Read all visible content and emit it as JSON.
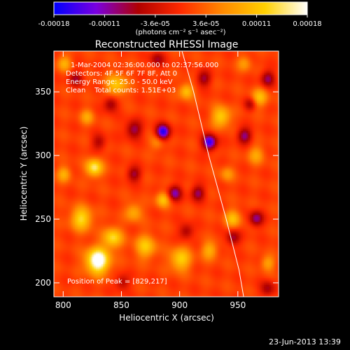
{
  "chart_data": {
    "type": "heatmap",
    "title": "Reconstructed RHESSI Image",
    "xlabel": "Heliocentric X (arcsec)",
    "ylabel": "Heliocentric Y (arcsec)",
    "xlim": [
      792,
      985
    ],
    "ylim": [
      189,
      382
    ],
    "xticks": [
      800,
      850,
      900,
      950
    ],
    "yticks": [
      200,
      250,
      300,
      350
    ],
    "colorbar": {
      "label": "(photons cm⁻² s⁻¹ asec⁻²)",
      "range": [
        -0.00018,
        0.00018
      ],
      "ticks": [
        "-0.00018",
        "-0.00011",
        "-3.6e-05",
        "3.6e-05",
        "0.00011",
        "0.00018"
      ],
      "colormap": [
        "#0000ff",
        "#7a00e0",
        "#b00000",
        "#ff2a00",
        "#ff8a00",
        "#ffd000",
        "#ffffff"
      ]
    },
    "annotations": [
      "1-Mar-2004 02:36:00.000 to 02:37:56.000",
      "Detectors: 4F 5F 6F 7F 8F, Att 0",
      "Energy Range: 25.0 - 50.0 keV",
      "Clean    Total counts: 1.51E+03"
    ],
    "peak_label": "Position of Peak = [829,217]",
    "peak": [
      829,
      217
    ],
    "limb_curve": [
      [
        902,
        382
      ],
      [
        912,
        350
      ],
      [
        925,
        300
      ],
      [
        940,
        250
      ],
      [
        951,
        210
      ],
      [
        955,
        189
      ]
    ]
  },
  "footer": {
    "date": "23-Jun-2013 13:39"
  }
}
